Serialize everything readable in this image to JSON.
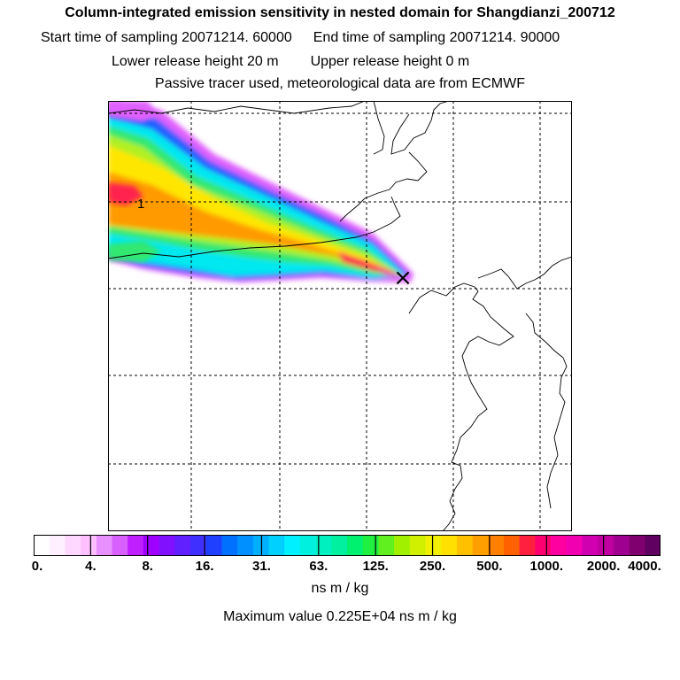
{
  "header": {
    "title": "Column-integrated emission sensitivity in nested domain for Shangdianzi_200712",
    "start_label": "Start time of sampling 20071214. 60000",
    "end_label": "End time of sampling 20071214. 90000",
    "lower_label": "Lower release height   20 m",
    "upper_label": "Upper release height    0 m",
    "info_line": "Passive tracer used, meteorological data are from ECMWF"
  },
  "map": {
    "contour_label": "1",
    "release_marker": "×",
    "plume_colors": {
      "edge": "#e060ff",
      "blue": "#2060ff",
      "cyan": "#00e8f0",
      "green": "#30e870",
      "lime": "#b0f020",
      "yellow": "#ffe600",
      "orange": "#ff9a00",
      "red": "#ff2050",
      "magenta": "#ff0090"
    }
  },
  "colorbar": {
    "ticks": [
      "0.",
      "4.",
      "8.",
      "16.",
      "31.",
      "63.",
      "125.",
      "250.",
      "500.",
      "1000.",
      "2000.",
      "4000."
    ],
    "colors": [
      "#ffffff",
      "#fff0ff",
      "#ffd8ff",
      "#ffc0ff",
      "#e890ff",
      "#d860ff",
      "#c020ff",
      "#a000ff",
      "#8010ff",
      "#6020ff",
      "#4030ff",
      "#2040ff",
      "#0070ff",
      "#0090ff",
      "#00b0ff",
      "#00d0ff",
      "#00f0ff",
      "#00f0e0",
      "#00f0c0",
      "#00f0a0",
      "#00f070",
      "#20f040",
      "#60f020",
      "#a0f000",
      "#d0f000",
      "#f0f000",
      "#ffe000",
      "#ffc000",
      "#ffa000",
      "#ff8000",
      "#ff6000",
      "#ff2040",
      "#ff0070",
      "#ff00a0",
      "#f000b0",
      "#d000b0",
      "#c000a0",
      "#a00090",
      "#800070",
      "#600060"
    ]
  },
  "footer": {
    "units": "ns m / kg",
    "max_value": "Maximum value  0.225E+04 ns m / kg"
  }
}
